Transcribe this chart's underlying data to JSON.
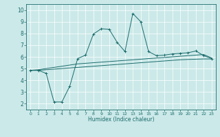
{
  "xlabel": "Humidex (Indice chaleur)",
  "xlim": [
    -0.5,
    23.5
  ],
  "ylim": [
    1.5,
    10.5
  ],
  "xticks": [
    0,
    1,
    2,
    3,
    4,
    5,
    6,
    7,
    8,
    9,
    10,
    11,
    12,
    13,
    14,
    15,
    16,
    17,
    18,
    19,
    20,
    21,
    22,
    23
  ],
  "yticks": [
    2,
    3,
    4,
    5,
    6,
    7,
    8,
    9,
    10
  ],
  "bg_color": "#cce9e9",
  "line_color": "#1a6b6b",
  "line1_x": [
    0,
    1,
    2,
    3,
    4,
    5,
    6,
    7,
    8,
    9,
    10,
    11,
    12,
    13,
    14,
    15,
    16,
    17,
    18,
    19,
    20,
    21,
    22,
    23
  ],
  "line1_y": [
    4.85,
    4.85,
    4.6,
    2.15,
    2.15,
    3.5,
    5.85,
    6.15,
    7.95,
    8.4,
    8.35,
    7.25,
    6.45,
    9.7,
    9.0,
    6.45,
    6.1,
    6.15,
    6.25,
    6.3,
    6.35,
    6.5,
    6.1,
    5.85
  ],
  "line2_x": [
    0,
    1,
    2,
    3,
    4,
    5,
    6,
    7,
    8,
    9,
    10,
    11,
    12,
    13,
    14,
    15,
    16,
    17,
    18,
    19,
    20,
    21,
    22,
    23
  ],
  "line2_y": [
    4.85,
    4.9,
    5.0,
    5.1,
    5.2,
    5.3,
    5.4,
    5.45,
    5.5,
    5.55,
    5.6,
    5.65,
    5.7,
    5.75,
    5.8,
    5.85,
    5.9,
    5.95,
    6.0,
    6.05,
    6.1,
    6.15,
    6.2,
    5.9
  ],
  "line3_x": [
    0,
    1,
    2,
    3,
    4,
    5,
    6,
    7,
    8,
    9,
    10,
    11,
    12,
    13,
    14,
    15,
    16,
    17,
    18,
    19,
    20,
    21,
    22,
    23
  ],
  "line3_y": [
    4.85,
    4.85,
    4.9,
    4.95,
    5.0,
    5.05,
    5.1,
    5.15,
    5.2,
    5.25,
    5.3,
    5.35,
    5.4,
    5.45,
    5.5,
    5.55,
    5.6,
    5.65,
    5.7,
    5.75,
    5.78,
    5.8,
    5.82,
    5.82
  ]
}
